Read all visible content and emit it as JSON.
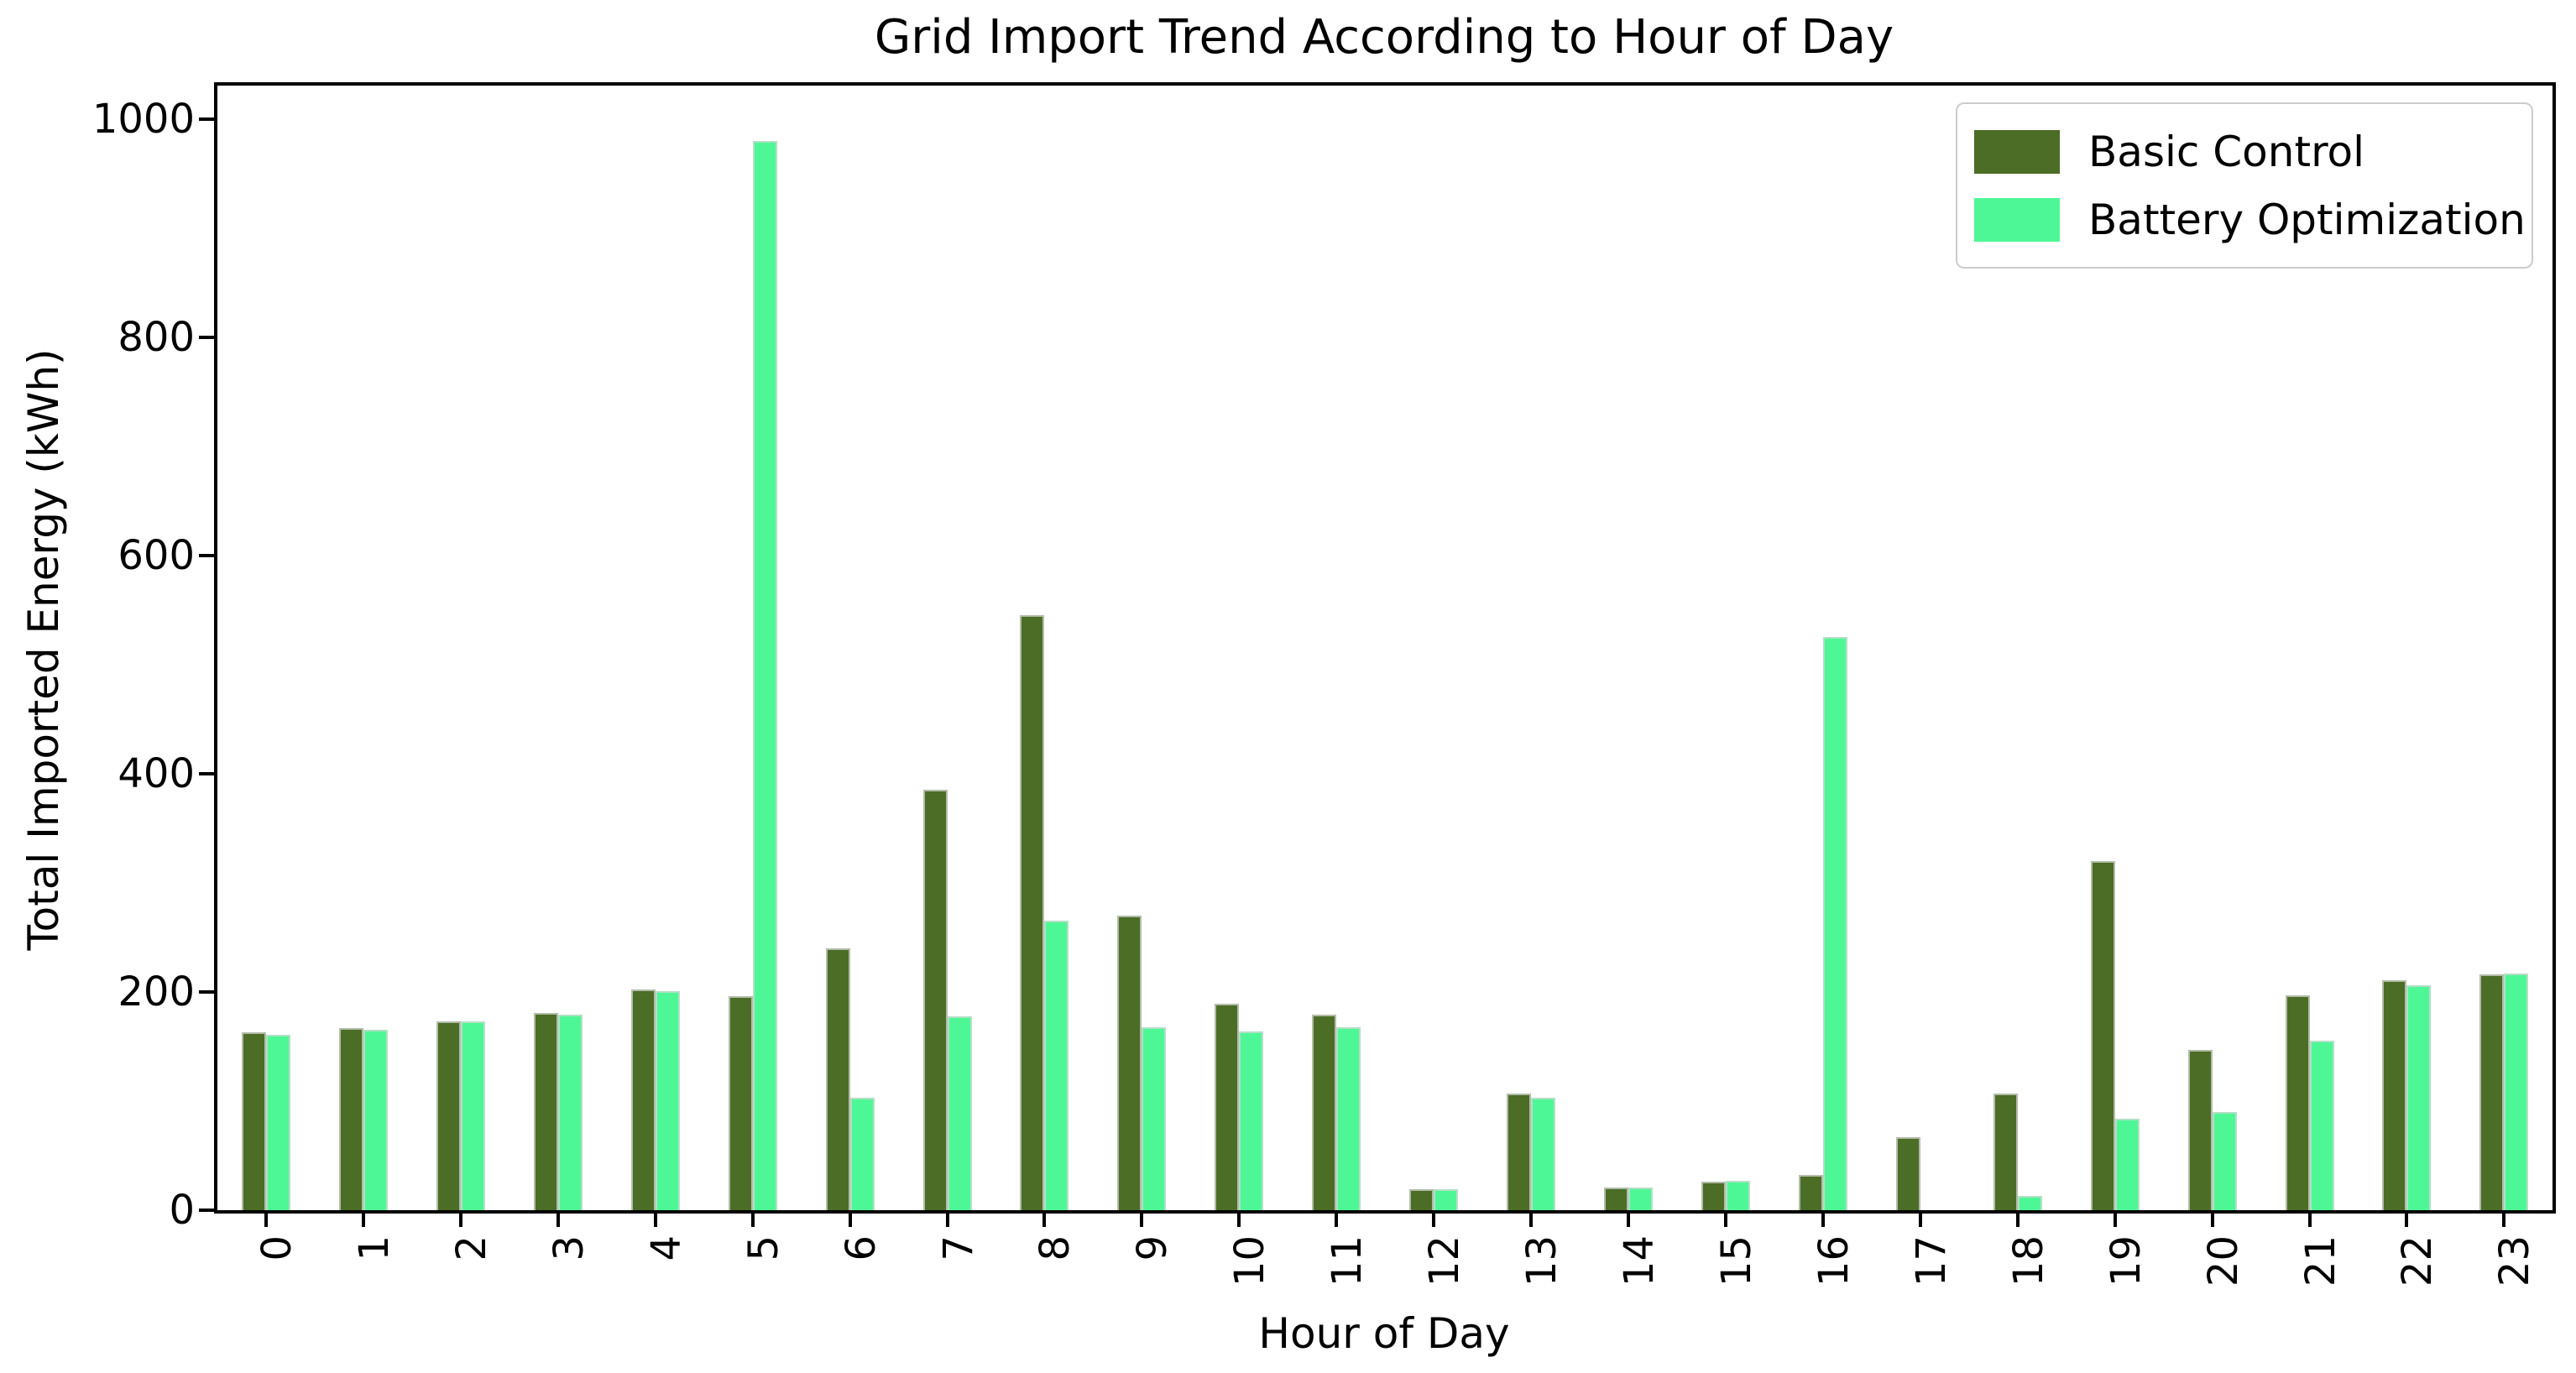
{
  "chart_data": {
    "type": "bar",
    "title": "Grid Import Trend According to Hour of Day",
    "xlabel": "Hour of Day",
    "ylabel": "Total Imported Energy (kWh)",
    "categories": [
      "0",
      "1",
      "2",
      "3",
      "4",
      "5",
      "6",
      "7",
      "8",
      "9",
      "10",
      "11",
      "12",
      "13",
      "14",
      "15",
      "16",
      "17",
      "18",
      "19",
      "20",
      "21",
      "22",
      "23"
    ],
    "series": [
      {
        "name": "Basic Control",
        "color": "#4b6d26",
        "values": [
          163,
          167,
          173,
          181,
          202,
          196,
          240,
          385,
          545,
          270,
          189,
          179,
          19,
          107,
          21,
          26,
          32,
          67,
          107,
          320,
          147,
          197,
          211,
          216
        ]
      },
      {
        "name": "Battery Optimization",
        "color": "#4ef795",
        "values": [
          161,
          165,
          173,
          179,
          201,
          980,
          103,
          178,
          265,
          168,
          164,
          168,
          19,
          103,
          21,
          27,
          525,
          0,
          13,
          84,
          90,
          155,
          206,
          217
        ]
      }
    ],
    "y_ticks": [
      0,
      200,
      400,
      600,
      800,
      1000
    ],
    "ylim": [
      0,
      1032
    ],
    "grid": false,
    "legend_position": "upper right"
  }
}
